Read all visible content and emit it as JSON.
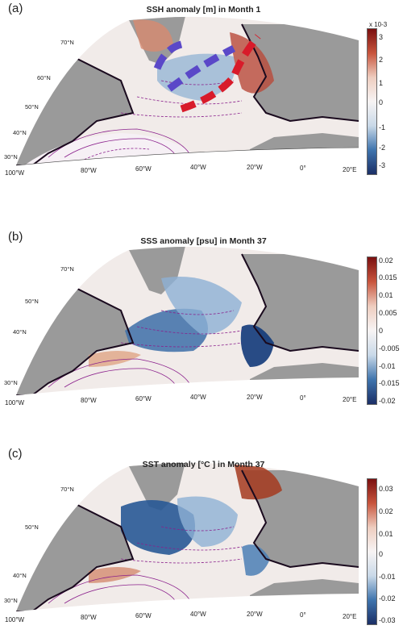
{
  "colors": {
    "land": "#9a9a9a",
    "ocean_neutral": "#f4eeee",
    "positive": "#8c1d16",
    "negative": "#1a3f7a",
    "contour": "#8a1f8c",
    "coast": "#1a0a1e",
    "arrow_red": "#d81b2a",
    "arrow_blue": "#5a48c8"
  },
  "panels": [
    {
      "label": "(a)",
      "title": "SSH anomaly [m] in Month 1",
      "colorbar": {
        "exponent": "x 10-3",
        "ticks": [
          "3",
          "2",
          "1",
          "0",
          "-1",
          "-2",
          "-3"
        ]
      }
    },
    {
      "label": "(b)",
      "title": "SSS anomaly [psu] in Month 37",
      "colorbar": {
        "ticks": [
          "0.02",
          "0.015",
          "0.01",
          "0.005",
          "0",
          "-0.005",
          "-0.01",
          "-0.015",
          "-0.02"
        ]
      }
    },
    {
      "label": "(c)",
      "title": "SST anomaly [°C ] in Month 37",
      "colorbar": {
        "ticks": [
          "0.03",
          "0.02",
          "0.01",
          "0",
          "-0.01",
          "-0.02",
          "-0.03"
        ]
      }
    }
  ],
  "lat_labels": [
    "70°N",
    "60°N",
    "50°N",
    "40°N",
    "30°N"
  ],
  "lon_labels": [
    "100°W",
    "80°W",
    "60°W",
    "40°W",
    "20°W",
    "0°",
    "20°E"
  ]
}
